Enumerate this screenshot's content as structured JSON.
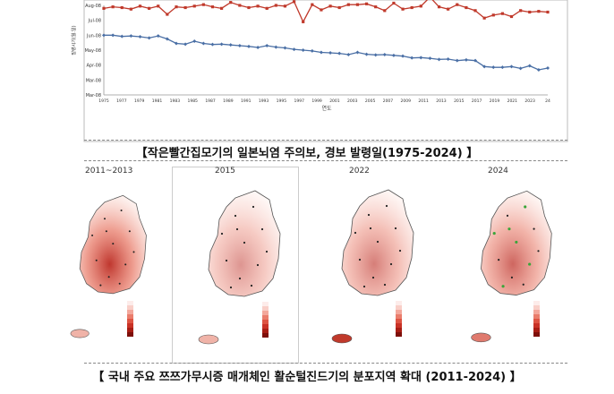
{
  "chart_data": [
    {
      "type": "line",
      "xlabel": "연도",
      "ylabel": "발령시기(월.일)",
      "x_ticks": [
        "1975",
        "1977",
        "1979",
        "1981",
        "1983",
        "1985",
        "1987",
        "1989",
        "1991",
        "1993",
        "1995",
        "1997",
        "1999",
        "2001",
        "2003",
        "2005",
        "2007",
        "2009",
        "2011",
        "2013",
        "2015",
        "2017",
        "2019",
        "2021",
        "2023",
        "24"
      ],
      "y_ticks": [
        "Aug-08",
        "Jul-08",
        "Jun-08",
        "May-08",
        "Apr-08",
        "Mar-08",
        "Mar-08"
      ],
      "y_range": [
        0,
        6
      ],
      "grid": false,
      "series": [
        {
          "color": "#c0392b",
          "marker": "square",
          "x": [
            1975,
            1976,
            1977,
            1978,
            1979,
            1980,
            1981,
            1982,
            1983,
            1984,
            1985,
            1986,
            1987,
            1988,
            1989,
            1990,
            1991,
            1992,
            1993,
            1994,
            1995,
            1996,
            1997,
            1998,
            1999,
            2000,
            2001,
            2002,
            2003,
            2004,
            2005,
            2006,
            2007,
            2008,
            2009,
            2010,
            2011,
            2012,
            2013,
            2014,
            2015,
            2016,
            2017,
            2018,
            2019,
            2020,
            2021,
            2022,
            2023,
            2024
          ],
          "y": [
            5.8,
            5.9,
            5.85,
            5.75,
            5.95,
            5.8,
            5.95,
            5.4,
            5.9,
            5.85,
            5.95,
            6.05,
            5.9,
            5.8,
            6.2,
            6.0,
            5.85,
            5.95,
            5.8,
            6.0,
            5.95,
            6.25,
            4.9,
            6.05,
            5.7,
            5.95,
            5.85,
            6.05,
            6.05,
            6.1,
            5.9,
            5.65,
            6.15,
            5.75,
            5.85,
            5.95,
            6.55,
            5.9,
            5.75,
            6.05,
            5.85,
            5.65,
            5.15,
            5.35,
            5.45,
            5.25,
            5.65,
            5.55,
            5.6,
            5.55
          ]
        },
        {
          "color": "#4a6fa5",
          "marker": "diamond",
          "x": [
            1975,
            1976,
            1977,
            1978,
            1979,
            1980,
            1981,
            1982,
            1983,
            1984,
            1985,
            1986,
            1987,
            1988,
            1989,
            1990,
            1991,
            1992,
            1993,
            1994,
            1995,
            1996,
            1997,
            1998,
            1999,
            2000,
            2001,
            2002,
            2003,
            2004,
            2005,
            2006,
            2007,
            2008,
            2009,
            2010,
            2011,
            2012,
            2013,
            2014,
            2015,
            2016,
            2017,
            2018,
            2019,
            2020,
            2021,
            2022,
            2023,
            2024
          ],
          "y": [
            4.0,
            4.0,
            3.92,
            3.95,
            3.9,
            3.82,
            3.95,
            3.75,
            3.45,
            3.4,
            3.6,
            3.45,
            3.38,
            3.4,
            3.35,
            3.3,
            3.25,
            3.18,
            3.3,
            3.2,
            3.15,
            3.05,
            3.0,
            2.95,
            2.85,
            2.82,
            2.78,
            2.7,
            2.85,
            2.72,
            2.68,
            2.7,
            2.65,
            2.6,
            2.48,
            2.5,
            2.45,
            2.38,
            2.4,
            2.3,
            2.35,
            2.3,
            1.9,
            1.85,
            1.85,
            1.9,
            1.78,
            1.95,
            1.68,
            1.8
          ]
        }
      ]
    },
    {
      "type": "heatmap",
      "panels": [
        {
          "title": "2011~2013",
          "intensity": 0.85
        },
        {
          "title": "2015",
          "intensity": 0.45
        },
        {
          "title": "2022",
          "intensity": 0.55
        },
        {
          "title": "2024",
          "intensity": 0.65
        }
      ],
      "legend_colors": [
        "#fdecea",
        "#f9cfc8",
        "#f3a89c",
        "#ea7d6c",
        "#de5443",
        "#c93226",
        "#a81d14",
        "#7e0f0a"
      ]
    }
  ],
  "captions": {
    "chart1": "【작은빨간집모기의 일본뇌염 주의보, 경보 발령일(1975-2024) 】",
    "chart2": "【 국내 주요 쯔쯔가무시증 매개체인 활순털진드기의 분포지역 확대 (2011-2024) 】"
  },
  "colors": {
    "red_series": "#c0392b",
    "blue_series": "#4a6fa5"
  }
}
